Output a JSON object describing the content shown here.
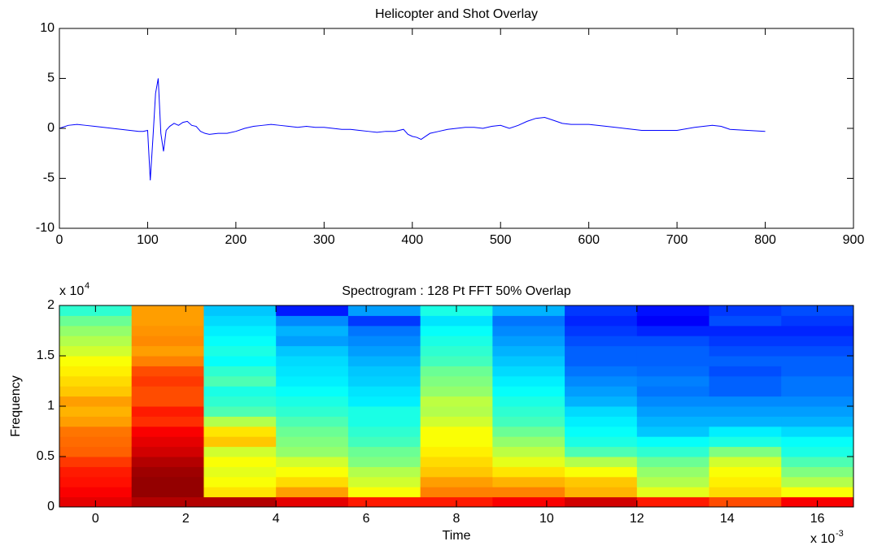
{
  "chart_data": [
    {
      "type": "line",
      "title": "Helicopter and Shot Overlay",
      "x": [
        0,
        10,
        20,
        30,
        40,
        50,
        60,
        70,
        80,
        90,
        95,
        100,
        103,
        106,
        109,
        112,
        115,
        118,
        121,
        125,
        130,
        135,
        140,
        145,
        150,
        155,
        160,
        165,
        170,
        180,
        190,
        200,
        210,
        220,
        230,
        240,
        250,
        260,
        270,
        280,
        290,
        300,
        310,
        320,
        330,
        340,
        350,
        360,
        370,
        380,
        390,
        395,
        400,
        405,
        410,
        415,
        420,
        430,
        440,
        450,
        460,
        470,
        480,
        490,
        500,
        510,
        520,
        530,
        540,
        550,
        560,
        570,
        580,
        590,
        600,
        620,
        640,
        660,
        680,
        700,
        720,
        740,
        750,
        760,
        780,
        800
      ],
      "series": [
        {
          "color": "#0000ff",
          "values": [
            0,
            0.3,
            0.4,
            0.3,
            0.2,
            0.1,
            0,
            -0.1,
            -0.2,
            -0.3,
            -0.3,
            -0.2,
            -5.2,
            -1,
            3.5,
            5,
            -0.5,
            -2.3,
            -0.2,
            0.2,
            0.5,
            0.3,
            0.6,
            0.7,
            0.3,
            0.2,
            -0.3,
            -0.5,
            -0.6,
            -0.5,
            -0.5,
            -0.3,
            0,
            0.2,
            0.3,
            0.4,
            0.3,
            0.2,
            0.1,
            0.2,
            0.1,
            0.1,
            0,
            -0.1,
            -0.1,
            -0.2,
            -0.3,
            -0.4,
            -0.3,
            -0.3,
            -0.1,
            -0.6,
            -0.8,
            -0.9,
            -1.1,
            -0.8,
            -0.5,
            -0.3,
            -0.1,
            0,
            0.1,
            0.1,
            0,
            0.2,
            0.3,
            0,
            0.3,
            0.7,
            1.0,
            1.1,
            0.8,
            0.5,
            0.4,
            0.4,
            0.4,
            0.2,
            0,
            -0.2,
            -0.2,
            -0.2,
            0.1,
            0.3,
            0.2,
            -0.1,
            -0.2,
            -0.3
          ]
        }
      ],
      "xlim": [
        0,
        900
      ],
      "xticks": [
        0,
        100,
        200,
        300,
        400,
        500,
        600,
        700,
        800,
        900
      ],
      "ylim": [
        -10,
        10
      ],
      "yticks": [
        -10,
        -5,
        0,
        5,
        10
      ]
    },
    {
      "type": "heatmap",
      "title": "Spectrogram : 128 Pt FFT 50% Overlap",
      "x_label": "Time",
      "y_label": "Frequency",
      "x_multiplier": {
        "text": "x 10",
        "exponent": "-3"
      },
      "y_multiplier": {
        "text": "x 10",
        "exponent": "4"
      },
      "colormap": "jet",
      "x": [
        0,
        1.6,
        3.2,
        4.8,
        6.4,
        8,
        9.6,
        11.2,
        12.8,
        14.4,
        16
      ],
      "y": [
        0.05,
        0.15,
        0.25,
        0.35,
        0.45,
        0.55,
        0.65,
        0.75,
        0.85,
        0.95,
        1.05,
        1.15,
        1.25,
        1.35,
        1.45,
        1.55,
        1.65,
        1.75,
        1.85,
        1.95
      ],
      "z": [
        [
          0.9,
          0.88,
          0.86,
          0.85,
          0.82,
          0.78,
          0.77,
          0.76,
          0.72,
          0.7,
          0.72,
          0.68,
          0.66,
          0.64,
          0.62,
          0.58,
          0.55,
          0.52,
          0.48,
          0.42
        ],
        [
          0.95,
          0.98,
          0.98,
          0.97,
          0.95,
          0.92,
          0.9,
          0.88,
          0.83,
          0.85,
          0.8,
          0.8,
          0.82,
          0.8,
          0.75,
          0.72,
          0.74,
          0.73,
          0.72,
          0.72
        ],
        [
          0.95,
          0.65,
          0.62,
          0.6,
          0.62,
          0.58,
          0.68,
          0.65,
          0.55,
          0.45,
          0.42,
          0.4,
          0.45,
          0.42,
          0.38,
          0.4,
          0.38,
          0.36,
          0.34,
          0.32
        ],
        [
          0.9,
          0.72,
          0.66,
          0.62,
          0.58,
          0.52,
          0.5,
          0.48,
          0.45,
          0.42,
          0.4,
          0.38,
          0.36,
          0.35,
          0.34,
          0.32,
          0.28,
          0.3,
          0.26,
          0.15
        ],
        [
          0.85,
          0.62,
          0.58,
          0.55,
          0.5,
          0.48,
          0.44,
          0.42,
          0.4,
          0.4,
          0.36,
          0.35,
          0.33,
          0.32,
          0.3,
          0.28,
          0.26,
          0.24,
          0.18,
          0.28
        ],
        [
          0.85,
          0.75,
          0.72,
          0.68,
          0.66,
          0.64,
          0.62,
          0.62,
          0.58,
          0.55,
          0.56,
          0.52,
          0.5,
          0.48,
          0.44,
          0.42,
          0.4,
          0.38,
          0.35,
          0.4
        ],
        [
          0.88,
          0.75,
          0.7,
          0.65,
          0.6,
          0.56,
          0.52,
          0.48,
          0.44,
          0.42,
          0.4,
          0.38,
          0.36,
          0.34,
          0.32,
          0.3,
          0.28,
          0.26,
          0.24,
          0.3
        ],
        [
          0.92,
          0.7,
          0.68,
          0.62,
          0.55,
          0.45,
          0.4,
          0.38,
          0.36,
          0.34,
          0.3,
          0.28,
          0.26,
          0.24,
          0.22,
          0.22,
          0.2,
          0.18,
          0.16,
          0.18
        ],
        [
          0.85,
          0.6,
          0.55,
          0.52,
          0.48,
          0.42,
          0.38,
          0.32,
          0.3,
          0.28,
          0.26,
          0.24,
          0.25,
          0.23,
          0.22,
          0.22,
          0.2,
          0.16,
          0.12,
          0.14
        ],
        [
          0.8,
          0.66,
          0.64,
          0.62,
          0.58,
          0.5,
          0.4,
          0.36,
          0.3,
          0.28,
          0.26,
          0.22,
          0.22,
          0.2,
          0.22,
          0.2,
          0.18,
          0.16,
          0.2,
          0.18
        ],
        [
          0.88,
          0.62,
          0.55,
          0.5,
          0.45,
          0.4,
          0.38,
          0.34,
          0.3,
          0.28,
          0.26,
          0.24,
          0.24,
          0.22,
          0.22,
          0.2,
          0.18,
          0.16,
          0.18,
          0.2
        ]
      ],
      "xlim": [
        -0.8,
        16.8
      ],
      "xticks": [
        0,
        2,
        4,
        6,
        8,
        10,
        12,
        14,
        16
      ],
      "ylim": [
        0,
        2
      ],
      "yticks": [
        0,
        0.5,
        1,
        1.5,
        2
      ]
    }
  ]
}
